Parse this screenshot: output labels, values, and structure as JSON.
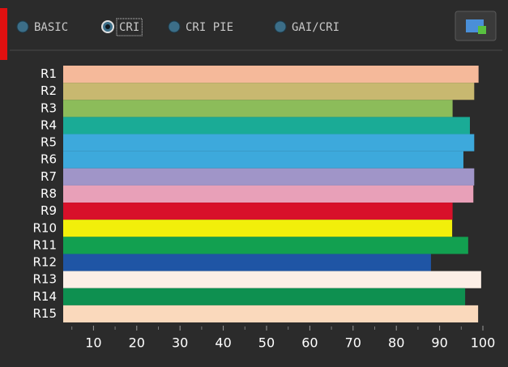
{
  "toolbar": {
    "options": [
      "BASIC",
      "CRI",
      "CRI PIE",
      "GAI/CRI"
    ],
    "selected": 1
  },
  "chart_data": {
    "type": "barh",
    "categories": [
      "R1",
      "R2",
      "R3",
      "R4",
      "R5",
      "R6",
      "R7",
      "R8",
      "R9",
      "R10",
      "R11",
      "R12",
      "R13",
      "R14",
      "R15"
    ],
    "values": [
      99,
      98,
      93,
      97,
      98,
      95.5,
      98,
      97.8,
      93,
      92.9,
      96.6,
      88,
      99.6,
      95.9,
      98.9
    ],
    "colors": [
      "#f5b99a",
      "#c8b870",
      "#8cbc5a",
      "#1aab96",
      "#3da9dc",
      "#3da9dc",
      "#a095c8",
      "#e8a0b8",
      "#d8102a",
      "#f2ef0a",
      "#12a050",
      "#1f55a5",
      "#fcefe6",
      "#0e9050",
      "#fad9bc"
    ],
    "xlim": [
      3,
      100
    ],
    "xticks": [
      10,
      20,
      30,
      40,
      50,
      60,
      70,
      80,
      90,
      100
    ],
    "minor_xticks": [
      5,
      15,
      25,
      35,
      45,
      55,
      65,
      75,
      85,
      95
    ]
  }
}
